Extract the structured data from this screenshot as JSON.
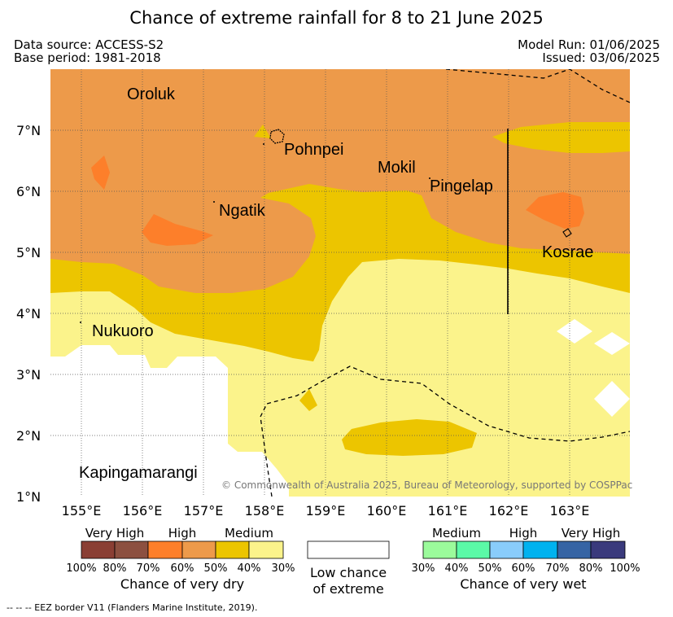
{
  "title": "Chance of extreme rainfall for 8 to 21 June 2025",
  "header": {
    "data_source": "Data source: ACCESS-S2",
    "base_period": "Base period: 1981-2018",
    "model_run": "Model Run: 01/06/2025",
    "issued": "Issued: 03/06/2025"
  },
  "map": {
    "lon_labels": [
      "155°E",
      "156°E",
      "157°E",
      "158°E",
      "159°E",
      "160°E",
      "161°E",
      "162°E",
      "163°E"
    ],
    "lat_labels": [
      "7°N",
      "6°N",
      "5°N",
      "4°N",
      "3°N",
      "2°N",
      "1°N"
    ],
    "places": {
      "oroluk": "Oroluk",
      "pohnpei": "Pohnpei",
      "mokil": "Mokil",
      "pingelap": "Pingelap",
      "ngatik": "Ngatik",
      "kosrae": "Kosrae",
      "nukuoro": "Nukuoro",
      "kapingamarangi": "Kapingamarangi"
    },
    "copyright": "© Commonwealth of Australia 2025, Bureau of Meteorology, supported by COSPPac",
    "colors": {
      "dry_high": "#ed9a4a",
      "dry_high_patch": "#fd7f2a",
      "dry_medium": "#ecc500",
      "dry_low": "#fbf38b"
    }
  },
  "legend": {
    "dry": {
      "categories": [
        "Very High",
        "High",
        "Medium"
      ],
      "percent_labels": [
        "100%",
        "80%",
        "70%",
        "60%",
        "50%",
        "40%",
        "30%"
      ],
      "caption": "Chance of very dry",
      "colors": [
        "#8a3f34",
        "#8c5040",
        "#fd7f2a",
        "#ed9a4a",
        "#ecc500",
        "#fbf38b"
      ]
    },
    "low_chance_line1": "Low chance",
    "low_chance_line2": "of extreme",
    "wet": {
      "categories": [
        "Medium",
        "High",
        "Very High"
      ],
      "percent_labels": [
        "30%",
        "40%",
        "50%",
        "60%",
        "70%",
        "80%",
        "100%"
      ],
      "caption": "Chance of very wet",
      "colors": [
        "#9bfb9b",
        "#5bfaa7",
        "#89ccfb",
        "#00b2ef",
        "#3664a4",
        "#3a3a7c"
      ]
    }
  },
  "footer": "-- -- -- EEZ border V11 (Flanders Marine Institute, 2019)."
}
